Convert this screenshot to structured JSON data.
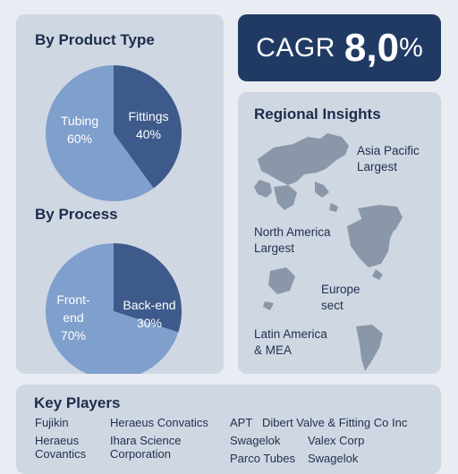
{
  "product_type": {
    "title": "By Product Type"
  },
  "process": {
    "title": "By Process"
  },
  "cagr": {
    "label": "CAGR",
    "value": "8,0",
    "unit": "%"
  },
  "regional": {
    "title": "Regional Insights",
    "regions": [
      {
        "name": "Asia Pacific",
        "note": "Largest"
      },
      {
        "name": "North America",
        "note": "Largest"
      },
      {
        "name": "Europe",
        "note": "sect"
      },
      {
        "name": "Latin America",
        "note": "& MEA"
      }
    ]
  },
  "players": {
    "title": "Key Players",
    "names": [
      "Fujikin",
      "Heraeus Convatics",
      "APT",
      "Dibert Valve & Fitting Co Inc",
      "Heraeus",
      "Covantics",
      "Ihara Science",
      "Corporation",
      "Swagelok",
      "Valex Corp",
      "Parco Tubes",
      "Swagelok"
    ]
  },
  "colors": {
    "light": "#7f9fcc",
    "dark": "#3d5a8a",
    "navy": "#203a64",
    "map": "#8a97a8"
  },
  "chart_data": [
    {
      "type": "pie",
      "title": "By Product Type",
      "labels": [
        "Tubing",
        "Fittings"
      ],
      "values": [
        60,
        40
      ],
      "value_labels": [
        "60%",
        "40%"
      ],
      "colors": [
        "#7f9fcc",
        "#3d5a8a"
      ]
    },
    {
      "type": "pie",
      "title": "By Process",
      "labels": [
        "Front-end",
        "Back-end"
      ],
      "values": [
        70,
        30
      ],
      "value_labels": [
        "70%",
        "30%"
      ],
      "colors": [
        "#7f9fcc",
        "#3d5a8a"
      ]
    }
  ]
}
